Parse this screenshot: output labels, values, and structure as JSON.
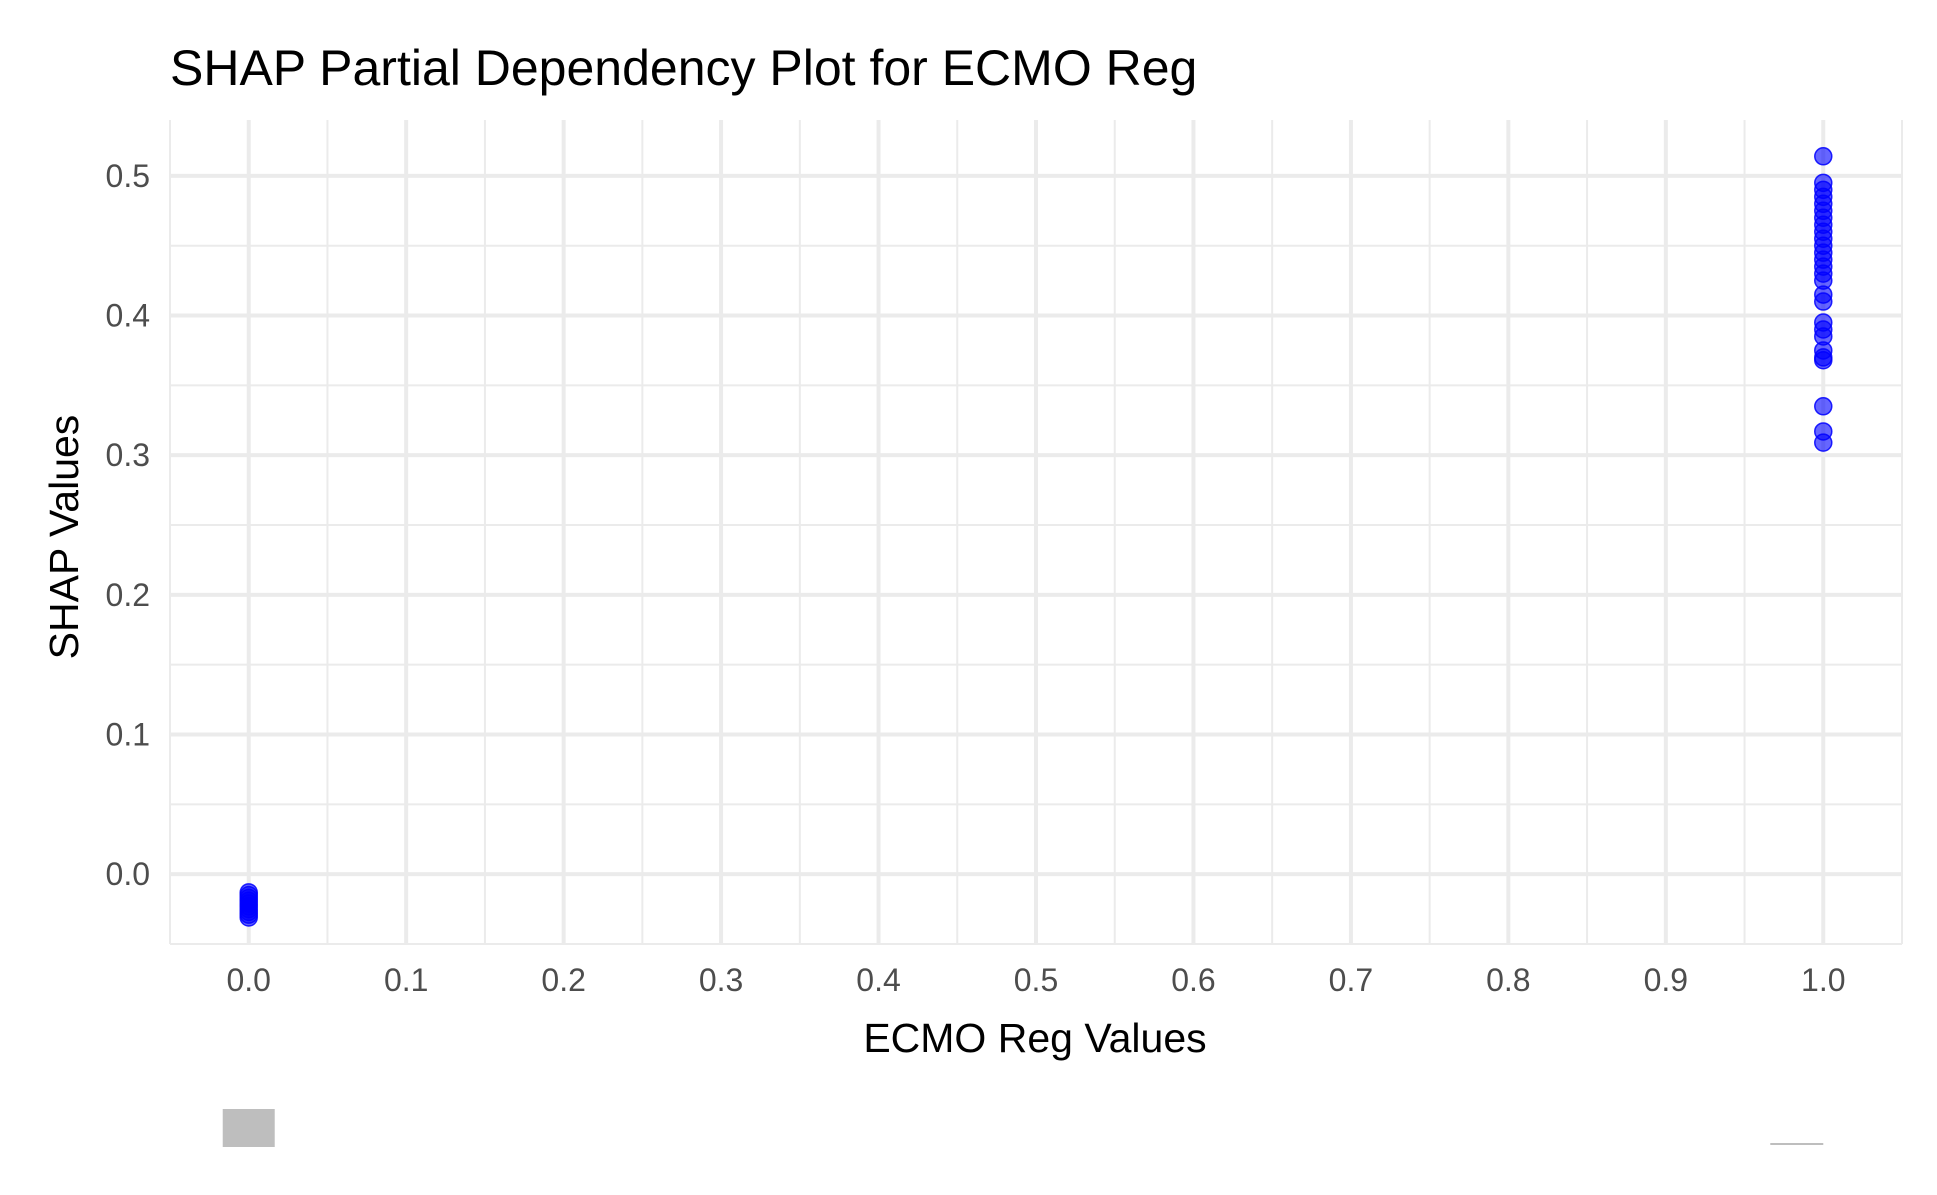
{
  "chart_data": {
    "type": "scatter",
    "title": "SHAP Partial Dependency Plot for ECMO Reg",
    "xlabel": "ECMO Reg Values",
    "ylabel": "SHAP Values",
    "xlim": [
      -0.05,
      1.05
    ],
    "ylim": [
      -0.05,
      0.54
    ],
    "x_ticks": [
      "0.0",
      "0.1",
      "0.2",
      "0.3",
      "0.4",
      "0.5",
      "0.6",
      "0.7",
      "0.8",
      "0.9",
      "1.0"
    ],
    "y_ticks": [
      "0.0",
      "0.1",
      "0.2",
      "0.3",
      "0.4",
      "0.5"
    ],
    "grid": true,
    "point_color": "#0000ff",
    "marginal_color": "#bebebe",
    "series": [
      {
        "points": [
          {
            "x": 0,
            "y": -0.013
          },
          {
            "x": 0,
            "y": -0.015
          },
          {
            "x": 0,
            "y": -0.017
          },
          {
            "x": 0,
            "y": -0.019
          },
          {
            "x": 0,
            "y": -0.021
          },
          {
            "x": 0,
            "y": -0.023
          },
          {
            "x": 0,
            "y": -0.025
          },
          {
            "x": 0,
            "y": -0.027
          },
          {
            "x": 0,
            "y": -0.029
          },
          {
            "x": 0,
            "y": -0.031
          },
          {
            "x": 1,
            "y": 0.514
          },
          {
            "x": 1,
            "y": 0.495
          },
          {
            "x": 1,
            "y": 0.49
          },
          {
            "x": 1,
            "y": 0.485
          },
          {
            "x": 1,
            "y": 0.48
          },
          {
            "x": 1,
            "y": 0.475
          },
          {
            "x": 1,
            "y": 0.47
          },
          {
            "x": 1,
            "y": 0.465
          },
          {
            "x": 1,
            "y": 0.46
          },
          {
            "x": 1,
            "y": 0.455
          },
          {
            "x": 1,
            "y": 0.45
          },
          {
            "x": 1,
            "y": 0.445
          },
          {
            "x": 1,
            "y": 0.44
          },
          {
            "x": 1,
            "y": 0.435
          },
          {
            "x": 1,
            "y": 0.43
          },
          {
            "x": 1,
            "y": 0.425
          },
          {
            "x": 1,
            "y": 0.415
          },
          {
            "x": 1,
            "y": 0.41
          },
          {
            "x": 1,
            "y": 0.395
          },
          {
            "x": 1,
            "y": 0.39
          },
          {
            "x": 1,
            "y": 0.385
          },
          {
            "x": 1,
            "y": 0.375
          },
          {
            "x": 1,
            "y": 0.37
          },
          {
            "x": 1,
            "y": 0.368
          },
          {
            "x": 1,
            "y": 0.335
          },
          {
            "x": 1,
            "y": 0.317
          },
          {
            "x": 1,
            "y": 0.309
          }
        ]
      }
    ]
  }
}
